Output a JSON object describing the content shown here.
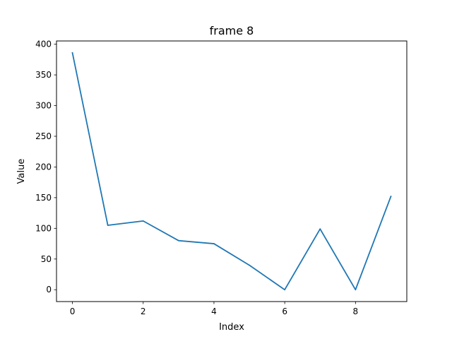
{
  "chart_data": {
    "type": "line",
    "title": "frame 8",
    "xlabel": "Index",
    "ylabel": "Value",
    "x": [
      0,
      1,
      2,
      3,
      4,
      5,
      6,
      7,
      8,
      9
    ],
    "series": [
      {
        "values": [
          386,
          105,
          112,
          80,
          75,
          40,
          0,
          99,
          0,
          152
        ],
        "color": "#1f77b4"
      }
    ],
    "xlim": [
      -0.45,
      9.45
    ],
    "ylim": [
      -19.3,
      405.3
    ],
    "xticks": [
      0,
      2,
      4,
      6,
      8
    ],
    "yticks": [
      0,
      50,
      100,
      150,
      200,
      250,
      300,
      350,
      400
    ],
    "grid": false,
    "legend": false
  }
}
